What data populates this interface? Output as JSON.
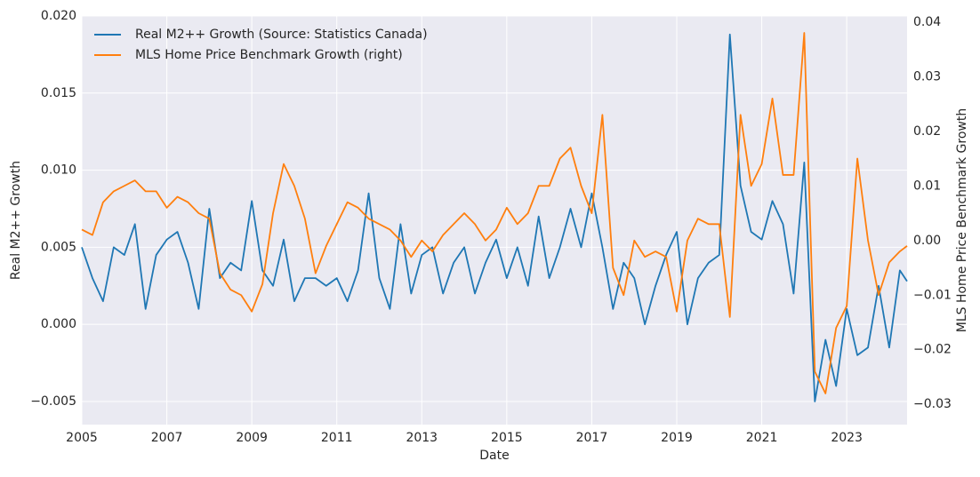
{
  "chart_data": {
    "type": "line",
    "x_label": "Date",
    "y_label": "Real M2++ Growth",
    "y2_label": "MLS Home Price Benchmark Growth",
    "x": [
      2005,
      2005.25,
      2005.5,
      2005.75,
      2006,
      2006.25,
      2006.5,
      2006.75,
      2007,
      2007.25,
      2007.5,
      2007.75,
      2008,
      2008.25,
      2008.5,
      2008.75,
      2009,
      2009.25,
      2009.5,
      2009.75,
      2010,
      2010.25,
      2010.5,
      2010.75,
      2011,
      2011.25,
      2011.5,
      2011.75,
      2012,
      2012.25,
      2012.5,
      2012.75,
      2013,
      2013.25,
      2013.5,
      2013.75,
      2014,
      2014.25,
      2014.5,
      2014.75,
      2015,
      2015.25,
      2015.5,
      2015.75,
      2016,
      2016.25,
      2016.5,
      2016.75,
      2017,
      2017.25,
      2017.5,
      2017.75,
      2018,
      2018.25,
      2018.5,
      2018.75,
      2019,
      2019.25,
      2019.5,
      2019.75,
      2020,
      2020.25,
      2020.5,
      2020.75,
      2021,
      2021.25,
      2021.5,
      2021.75,
      2022,
      2022.25,
      2022.5,
      2022.75,
      2023,
      2023.25,
      2023.5,
      2023.75,
      2024,
      2024.25,
      2024.42
    ],
    "series": [
      {
        "name": "Real M2++ Growth (Source: Statistics Canada)",
        "color": "#1f77b4",
        "values": [
          0.005,
          0.003,
          0.0015,
          0.005,
          0.0045,
          0.0065,
          0.001,
          0.0045,
          0.0055,
          0.006,
          0.004,
          0.001,
          0.0075,
          0.003,
          0.004,
          0.0035,
          0.008,
          0.0035,
          0.0025,
          0.0055,
          0.0015,
          0.003,
          0.003,
          0.0025,
          0.003,
          0.0015,
          0.0035,
          0.0085,
          0.003,
          0.001,
          0.0065,
          0.002,
          0.0045,
          0.005,
          0.002,
          0.004,
          0.005,
          0.002,
          0.004,
          0.0055,
          0.003,
          0.005,
          0.0025,
          0.007,
          0.003,
          0.005,
          0.0075,
          0.005,
          0.0085,
          0.005,
          0.001,
          0.004,
          0.003,
          0.0,
          0.0025,
          0.0045,
          0.006,
          0.0,
          0.003,
          0.004,
          0.0045,
          0.0188,
          0.009,
          0.006,
          0.0055,
          0.008,
          0.0065,
          0.002,
          0.0105,
          -0.005,
          -0.001,
          -0.004,
          0.001,
          -0.002,
          -0.0015,
          0.0025,
          -0.0015,
          0.0035,
          0.0028
        ]
      },
      {
        "name": "MLS Home Price Benchmark Growth (right)",
        "color": "#ff7f0e",
        "axis": "y2",
        "values": [
          0.002,
          0.001,
          0.007,
          0.009,
          0.01,
          0.011,
          0.009,
          0.009,
          0.006,
          0.008,
          0.007,
          0.005,
          0.004,
          -0.006,
          -0.009,
          -0.01,
          -0.013,
          -0.008,
          0.005,
          0.014,
          0.01,
          0.004,
          -0.006,
          -0.001,
          0.003,
          0.007,
          0.006,
          0.004,
          0.003,
          0.002,
          0.0,
          -0.003,
          0.0,
          -0.002,
          0.001,
          0.003,
          0.005,
          0.003,
          0.0,
          0.002,
          0.006,
          0.003,
          0.005,
          0.01,
          0.01,
          0.015,
          0.017,
          0.01,
          0.005,
          0.023,
          -0.005,
          -0.01,
          0.0,
          -0.003,
          -0.002,
          -0.003,
          -0.013,
          0.0,
          0.004,
          0.003,
          0.003,
          -0.014,
          0.023,
          0.01,
          0.014,
          0.026,
          0.012,
          0.012,
          0.038,
          -0.024,
          -0.028,
          -0.016,
          -0.012,
          0.015,
          0.0,
          -0.01,
          -0.004,
          -0.002,
          -0.001
        ]
      }
    ],
    "xlim": [
      2005,
      2024.42
    ],
    "xticks": [
      2005,
      2007,
      2009,
      2011,
      2013,
      2015,
      2017,
      2019,
      2021,
      2023
    ],
    "ylim": [
      -0.0065,
      0.02
    ],
    "yticks": [
      {
        "value": -0.005,
        "label": "−0.005"
      },
      {
        "value": 0,
        "label": "0.000"
      },
      0.005,
      {
        "value": 0.01,
        "label": "0.010"
      },
      0.015,
      {
        "value": 0.02,
        "label": "0.020"
      }
    ],
    "y2lim": [
      -0.0337,
      0.0411
    ],
    "y2ticks": [
      {
        "value": -0.03,
        "label": "−0.03"
      },
      {
        "value": -0.02,
        "label": "−0.02"
      },
      {
        "value": -0.01,
        "label": "−0.01"
      },
      {
        "value": 0,
        "label": "0.00"
      },
      0.01,
      0.02,
      0.03,
      0.04
    ],
    "grid": true,
    "legend": "upper left"
  }
}
